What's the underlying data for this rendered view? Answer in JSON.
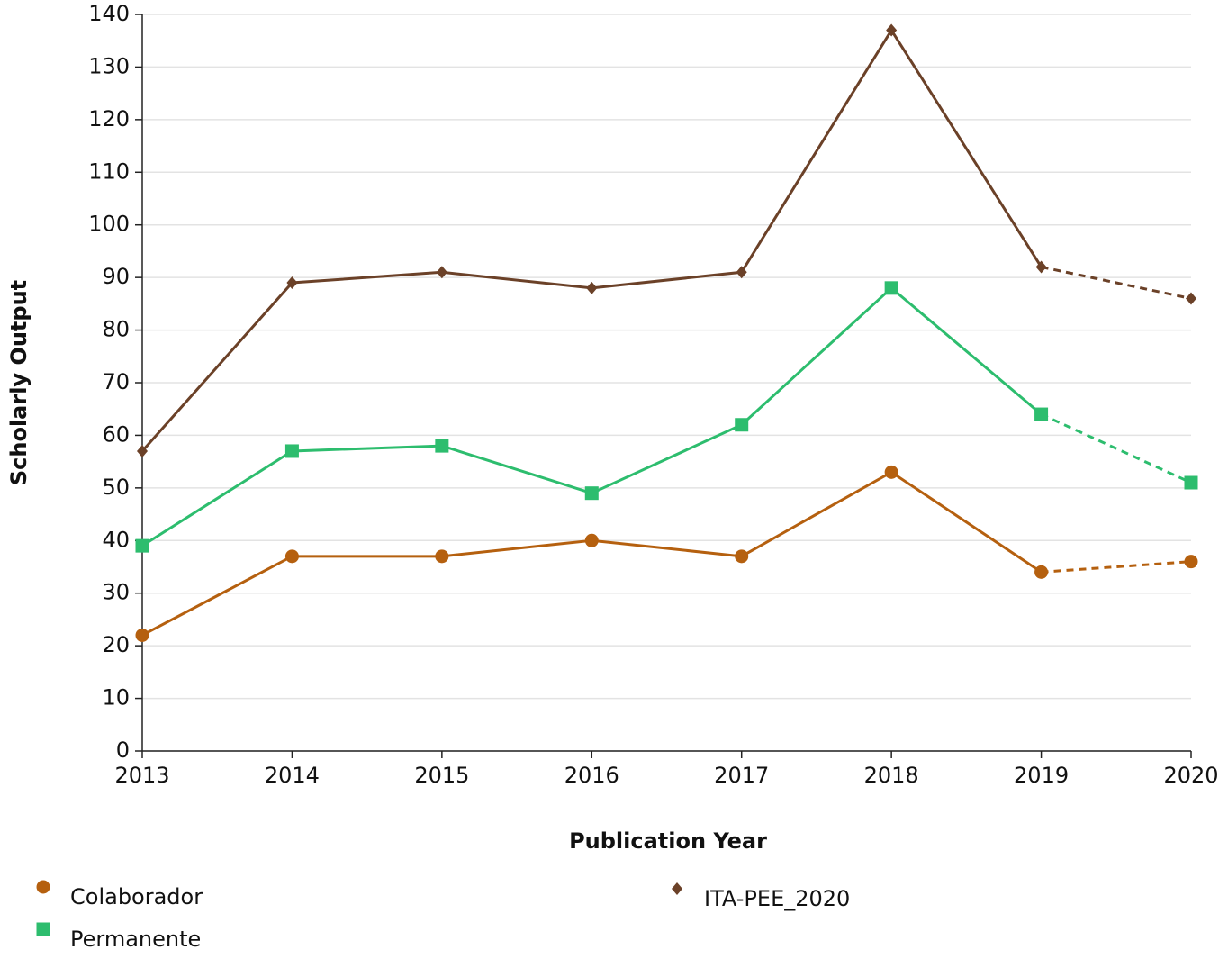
{
  "chart_data": {
    "type": "line",
    "x_label": "Publication Year",
    "y_label": "Scholarly Output",
    "x": [
      2013,
      2014,
      2015,
      2016,
      2017,
      2018,
      2019,
      2020
    ],
    "xlim": [
      2013,
      2020
    ],
    "xticks": [
      2013,
      2014,
      2015,
      2016,
      2017,
      2018,
      2019,
      2020
    ],
    "ylim": [
      0,
      140
    ],
    "yticks": [
      0,
      10,
      20,
      30,
      40,
      50,
      60,
      70,
      80,
      90,
      100,
      110,
      120,
      130,
      140
    ],
    "grid": true,
    "legend": "bottom",
    "dashed_from": 2019,
    "series": [
      {
        "name": "Colaborador",
        "color": "#b5600f",
        "marker": "circle",
        "values": [
          22,
          37,
          37,
          40,
          37,
          53,
          34,
          36
        ]
      },
      {
        "name": "Permanente",
        "color": "#2dbd6e",
        "marker": "square",
        "values": [
          39,
          57,
          58,
          49,
          62,
          88,
          64,
          51
        ]
      },
      {
        "name": "ITA-PEE_2020",
        "color": "#6b4128",
        "marker": "diamond",
        "values": [
          57,
          89,
          91,
          88,
          91,
          137,
          92,
          86
        ]
      }
    ]
  }
}
